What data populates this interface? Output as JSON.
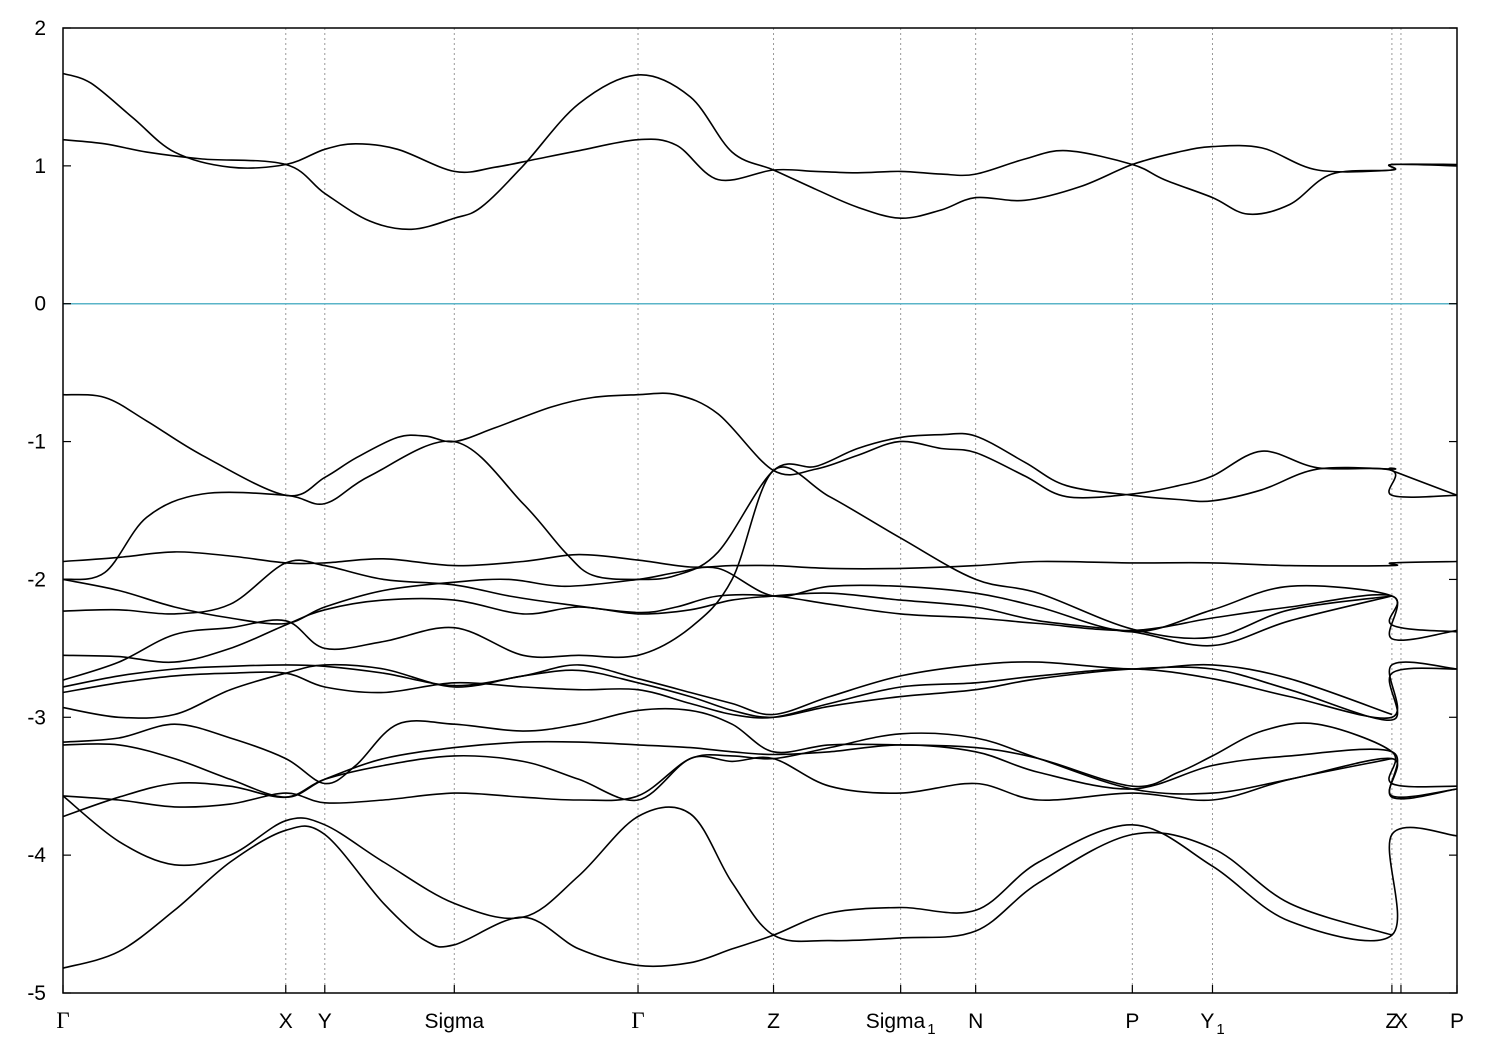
{
  "chart_data": {
    "type": "line",
    "title": "",
    "xlabel": "",
    "ylabel": "",
    "xlim": [
      0,
      1
    ],
    "ylim": [
      -5,
      2
    ],
    "y_ticks": [
      2,
      1,
      0,
      -1,
      -2,
      -3,
      -4,
      -5
    ],
    "y_tick_labels": [
      "2",
      "1",
      "0",
      "-1",
      "-2",
      "-3",
      "-4",
      "-5"
    ],
    "grid": "vertical dotted lines at high-symmetry points",
    "fermi_level": 0,
    "fermi_line_color": "#5ab4c8",
    "band_color": "#000000",
    "kpoints": [
      {
        "label": "Γ",
        "sub": "",
        "x": 0.0
      },
      {
        "label": "X",
        "sub": "",
        "x": 0.1598
      },
      {
        "label": "Y",
        "sub": "",
        "x": 0.1878
      },
      {
        "label": "Sigma",
        "sub": "",
        "x": 0.2807
      },
      {
        "label": "Γ",
        "sub": "",
        "x": 0.4125
      },
      {
        "label": "Z",
        "sub": "",
        "x": 0.5097
      },
      {
        "label": "Sigma",
        "sub": "1",
        "x": 0.6009
      },
      {
        "label": "N",
        "sub": "",
        "x": 0.6547
      },
      {
        "label": "P",
        "sub": "",
        "x": 0.7671
      },
      {
        "label": "Y",
        "sub": "1",
        "x": 0.8246
      },
      {
        "label": "Z",
        "sub": "",
        "x": 0.9533
      },
      {
        "label": "X",
        "sub": "",
        "x": 0.9598
      },
      {
        "label": "P",
        "sub": "",
        "x": 1.0
      }
    ],
    "series": [
      {
        "x": [
          0,
          0.02,
          0.05,
          0.08,
          0.12,
          0.1598,
          0.1878,
          0.21,
          0.24,
          0.2807,
          0.31,
          0.34,
          0.37,
          0.4125,
          0.44,
          0.47,
          0.5097,
          0.54,
          0.57,
          0.6009,
          0.63,
          0.6547,
          0.69,
          0.72,
          0.7671,
          0.79,
          0.8246,
          0.85,
          0.88,
          0.91,
          0.9533,
          0.9533,
          1.0
        ],
        "y": [
          1.67,
          1.6,
          1.35,
          1.1,
          0.99,
          1.01,
          1.12,
          1.16,
          1.12,
          0.96,
          0.99,
          1.05,
          1.11,
          1.19,
          1.15,
          0.9,
          0.97,
          0.96,
          0.95,
          0.96,
          0.94,
          0.94,
          1.05,
          1.11,
          1.01,
          0.9,
          0.77,
          0.65,
          0.72,
          0.94,
          0.97,
          1.01,
          1.01
        ]
      },
      {
        "x": [
          0,
          0.03,
          0.06,
          0.1,
          0.1598,
          0.1878,
          0.22,
          0.25,
          0.2807,
          0.3,
          0.33,
          0.37,
          0.4125,
          0.45,
          0.48,
          0.5097,
          0.54,
          0.57,
          0.6009,
          0.63,
          0.6547,
          0.69,
          0.73,
          0.7671,
          0.8,
          0.8246,
          0.86,
          0.9,
          0.9533,
          0.9533,
          1.0
        ],
        "y": [
          1.19,
          1.16,
          1.1,
          1.05,
          1.01,
          0.8,
          0.6,
          0.54,
          0.62,
          0.7,
          1.0,
          1.45,
          1.66,
          1.5,
          1.1,
          0.97,
          0.83,
          0.7,
          0.62,
          0.68,
          0.77,
          0.75,
          0.85,
          1.01,
          1.1,
          1.14,
          1.13,
          0.97,
          0.97,
          1.01,
          1.0
        ]
      },
      {
        "x": [
          0,
          0.03,
          0.06,
          0.1,
          0.1598,
          0.1878,
          0.21,
          0.24,
          0.26,
          0.2807,
          0.31,
          0.35,
          0.38,
          0.4125,
          0.44,
          0.47,
          0.5097,
          0.54,
          0.57,
          0.6,
          0.63,
          0.6547,
          0.69,
          0.72,
          0.7671,
          0.8,
          0.8246,
          0.86,
          0.9,
          0.9533,
          0.9533,
          1.0
        ],
        "y": [
          -0.66,
          -0.68,
          -0.85,
          -1.1,
          -1.39,
          -1.26,
          -1.12,
          -0.97,
          -0.96,
          -1.0,
          -0.9,
          -0.75,
          -0.68,
          -0.66,
          -0.66,
          -0.8,
          -1.21,
          -1.2,
          -1.1,
          -1.0,
          -1.05,
          -1.08,
          -1.25,
          -1.4,
          -1.38,
          -1.32,
          -1.25,
          -1.07,
          -1.19,
          -1.21,
          -1.39,
          -1.39
        ]
      },
      {
        "x": [
          0,
          0.03,
          0.06,
          0.1,
          0.1598,
          0.1878,
          0.22,
          0.2807,
          0.33,
          0.36,
          0.38,
          0.4125,
          0.44,
          0.47,
          0.5097,
          0.54,
          0.57,
          0.6009,
          0.63,
          0.6547,
          0.69,
          0.72,
          0.7671,
          0.8,
          0.8246,
          0.86,
          0.9,
          0.9533,
          0.9533,
          1.0
        ],
        "y": [
          -2.0,
          -1.95,
          -1.55,
          -1.38,
          -1.39,
          -1.45,
          -1.25,
          -1.0,
          -1.45,
          -1.8,
          -1.97,
          -2.0,
          -1.97,
          -1.8,
          -1.21,
          -1.18,
          -1.05,
          -0.97,
          -0.95,
          -0.96,
          -1.15,
          -1.32,
          -1.39,
          -1.42,
          -1.43,
          -1.35,
          -1.2,
          -1.2,
          -1.21,
          -1.39
        ]
      },
      {
        "x": [
          0,
          0.04,
          0.08,
          0.12,
          0.1598,
          0.1878,
          0.23,
          0.2807,
          0.33,
          0.37,
          0.4125,
          0.45,
          0.48,
          0.5097,
          0.55,
          0.6009,
          0.6547,
          0.7,
          0.7671,
          0.8246,
          0.88,
          0.9533,
          0.9533,
          1.0
        ],
        "y": [
          -1.87,
          -1.84,
          -1.8,
          -1.83,
          -1.88,
          -1.88,
          -1.85,
          -1.9,
          -1.87,
          -1.82,
          -1.86,
          -1.91,
          -1.9,
          -1.9,
          -1.92,
          -1.92,
          -1.9,
          -1.87,
          -1.88,
          -1.88,
          -1.9,
          -1.9,
          -1.88,
          -1.87
        ]
      },
      {
        "x": [
          0,
          0.04,
          0.08,
          0.12,
          0.1598,
          0.1878,
          0.23,
          0.2807,
          0.32,
          0.36,
          0.4125,
          0.44,
          0.47,
          0.5097,
          0.55,
          0.6009,
          0.6547,
          0.7,
          0.7671,
          0.8246,
          0.88,
          0.9533,
          0.9533,
          1.0
        ],
        "y": [
          -2.0,
          -2.08,
          -2.2,
          -2.28,
          -2.32,
          -2.2,
          -2.08,
          -2.02,
          -2.0,
          -2.05,
          -2.0,
          -1.95,
          -1.92,
          -2.12,
          -2.05,
          -2.05,
          -2.1,
          -2.2,
          -2.38,
          -2.22,
          -2.05,
          -2.12,
          -2.33,
          -2.38
        ]
      },
      {
        "x": [
          0,
          0.04,
          0.08,
          0.12,
          0.1598,
          0.1878,
          0.23,
          0.2807,
          0.32,
          0.36,
          0.4125,
          0.44,
          0.47,
          0.5097,
          0.55,
          0.6009,
          0.6547,
          0.7,
          0.7671,
          0.8246,
          0.88,
          0.9533,
          0.9533,
          1.0
        ],
        "y": [
          -2.23,
          -2.22,
          -2.25,
          -2.18,
          -1.88,
          -1.9,
          -2.0,
          -2.04,
          -2.12,
          -2.18,
          -2.24,
          -2.2,
          -2.12,
          -2.12,
          -2.18,
          -2.25,
          -2.28,
          -2.32,
          -2.37,
          -2.28,
          -2.2,
          -2.12,
          -2.43,
          -2.37
        ]
      },
      {
        "x": [
          0,
          0.04,
          0.08,
          0.12,
          0.1598,
          0.1878,
          0.23,
          0.2807,
          0.33,
          0.37,
          0.4125,
          0.45,
          0.48,
          0.5097,
          0.55,
          0.6009,
          0.6547,
          0.7,
          0.7671,
          0.8246,
          0.88,
          0.9533
        ],
        "y": [
          -2.55,
          -2.56,
          -2.6,
          -2.5,
          -2.33,
          -2.22,
          -2.15,
          -2.15,
          -2.25,
          -2.2,
          -2.25,
          -2.22,
          -2.15,
          -2.12,
          -2.1,
          -2.15,
          -2.2,
          -2.3,
          -2.38,
          -2.48,
          -2.3,
          -2.12
        ]
      },
      {
        "x": [
          0,
          0.04,
          0.08,
          0.12,
          0.1598,
          0.1878,
          0.23,
          0.2807,
          0.33,
          0.37,
          0.4125,
          0.45,
          0.48,
          0.5097,
          0.55,
          0.6009,
          0.6547,
          0.7,
          0.7671,
          0.8246,
          0.88,
          0.9533
        ],
        "y": [
          -2.73,
          -2.6,
          -2.4,
          -2.35,
          -2.3,
          -2.5,
          -2.45,
          -2.35,
          -2.55,
          -2.55,
          -2.55,
          -2.35,
          -2.0,
          -1.21,
          -1.4,
          -1.7,
          -2.0,
          -2.1,
          -2.36,
          -2.42,
          -2.22,
          -2.12
        ]
      },
      {
        "x": [
          0,
          0.04,
          0.08,
          0.12,
          0.1598,
          0.1878,
          0.23,
          0.2807,
          0.33,
          0.37,
          0.4125,
          0.45,
          0.48,
          0.5097,
          0.55,
          0.6009,
          0.6547,
          0.7,
          0.7671,
          0.8246,
          0.88,
          0.9533
        ],
        "y": [
          -2.78,
          -2.7,
          -2.65,
          -2.63,
          -2.62,
          -2.63,
          -2.68,
          -2.77,
          -2.7,
          -2.62,
          -2.72,
          -2.82,
          -2.9,
          -2.98,
          -2.85,
          -2.7,
          -2.62,
          -2.6,
          -2.65,
          -2.62,
          -2.72,
          -2.98
        ]
      },
      {
        "x": [
          0,
          0.04,
          0.08,
          0.12,
          0.1598,
          0.1878,
          0.23,
          0.2807,
          0.33,
          0.37,
          0.4125,
          0.45,
          0.48,
          0.5097,
          0.55,
          0.6009,
          0.6547,
          0.7,
          0.7671,
          0.8246,
          0.88,
          0.9533,
          0.9533,
          1.0
        ],
        "y": [
          -2.82,
          -2.75,
          -2.7,
          -2.68,
          -2.68,
          -2.78,
          -2.82,
          -2.75,
          -2.78,
          -2.8,
          -2.8,
          -2.9,
          -2.98,
          -3.0,
          -2.9,
          -2.78,
          -2.75,
          -2.7,
          -2.65,
          -2.72,
          -2.85,
          -3.0,
          -2.62,
          -2.65
        ]
      },
      {
        "x": [
          0,
          0.04,
          0.08,
          0.12,
          0.1598,
          0.1878,
          0.23,
          0.2807,
          0.33,
          0.37,
          0.4125,
          0.45,
          0.48,
          0.5097,
          0.55,
          0.6009,
          0.6547,
          0.7,
          0.7671,
          0.8246,
          0.88,
          0.9533,
          0.9533,
          1.0
        ],
        "y": [
          -2.93,
          -3.0,
          -2.98,
          -2.8,
          -2.68,
          -2.62,
          -2.65,
          -2.78,
          -2.7,
          -2.66,
          -2.75,
          -2.85,
          -2.95,
          -3.0,
          -2.92,
          -2.85,
          -2.8,
          -2.72,
          -2.65,
          -2.65,
          -2.8,
          -3.02,
          -2.68,
          -2.65
        ]
      },
      {
        "x": [
          0,
          0.04,
          0.08,
          0.12,
          0.1598,
          0.1878,
          0.21,
          0.24,
          0.2807,
          0.33,
          0.37,
          0.4125,
          0.45,
          0.48,
          0.5097,
          0.55,
          0.6009,
          0.6547,
          0.7,
          0.7671,
          0.8,
          0.8246,
          0.86,
          0.9,
          0.9533,
          0.9533,
          1.0
        ],
        "y": [
          -3.18,
          -3.15,
          -3.05,
          -3.15,
          -3.3,
          -3.48,
          -3.35,
          -3.05,
          -3.05,
          -3.1,
          -3.05,
          -2.95,
          -2.95,
          -3.05,
          -3.25,
          -3.2,
          -3.2,
          -3.22,
          -3.3,
          -3.5,
          -3.4,
          -3.28,
          -3.1,
          -3.05,
          -3.25,
          -3.48,
          -3.5
        ]
      },
      {
        "x": [
          0,
          0.04,
          0.08,
          0.12,
          0.1598,
          0.1878,
          0.23,
          0.2807,
          0.33,
          0.37,
          0.4125,
          0.45,
          0.48,
          0.5097,
          0.55,
          0.6009,
          0.6547,
          0.7,
          0.7671,
          0.8246,
          0.88,
          0.9533,
          0.9533,
          1.0
        ],
        "y": [
          -3.2,
          -3.2,
          -3.3,
          -3.45,
          -3.58,
          -3.45,
          -3.3,
          -3.22,
          -3.18,
          -3.18,
          -3.2,
          -3.22,
          -3.25,
          -3.27,
          -3.25,
          -3.2,
          -3.25,
          -3.4,
          -3.52,
          -3.35,
          -3.28,
          -3.25,
          -3.58,
          -3.52
        ]
      },
      {
        "x": [
          0,
          0.04,
          0.08,
          0.12,
          0.1598,
          0.1878,
          0.23,
          0.2807,
          0.33,
          0.37,
          0.4125,
          0.45,
          0.48,
          0.5097,
          0.55,
          0.6009,
          0.6547,
          0.7,
          0.7671,
          0.8246,
          0.88,
          0.9533,
          0.9533,
          1.0
        ],
        "y": [
          -3.57,
          -3.6,
          -3.65,
          -3.63,
          -3.55,
          -3.62,
          -3.6,
          -3.55,
          -3.58,
          -3.6,
          -3.57,
          -3.3,
          -3.28,
          -3.3,
          -3.22,
          -3.12,
          -3.15,
          -3.3,
          -3.52,
          -3.55,
          -3.45,
          -3.3,
          -3.57,
          -3.52
        ]
      },
      {
        "x": [
          0,
          0.04,
          0.08,
          0.12,
          0.1598,
          0.1878,
          0.23,
          0.2807,
          0.33,
          0.37,
          0.4125,
          0.45,
          0.48,
          0.5097,
          0.55,
          0.6009,
          0.6547,
          0.7,
          0.7671,
          0.8246,
          0.88,
          0.9533
        ],
        "y": [
          -3.72,
          -3.58,
          -3.48,
          -3.5,
          -3.58,
          -3.45,
          -3.35,
          -3.28,
          -3.32,
          -3.45,
          -3.6,
          -3.3,
          -3.32,
          -3.3,
          -3.5,
          -3.55,
          -3.48,
          -3.6,
          -3.55,
          -3.6,
          -3.45,
          -3.3
        ]
      },
      {
        "x": [
          0,
          0.04,
          0.08,
          0.12,
          0.1598,
          0.1878,
          0.23,
          0.2807,
          0.33,
          0.37,
          0.4125,
          0.45,
          0.48,
          0.5097,
          0.55,
          0.6009,
          0.6547,
          0.7,
          0.7671,
          0.8246,
          0.88,
          0.9533
        ],
        "y": [
          -3.57,
          -3.9,
          -4.07,
          -4.0,
          -3.75,
          -3.78,
          -4.05,
          -4.35,
          -4.45,
          -4.15,
          -3.72,
          -3.7,
          -4.2,
          -4.58,
          -4.62,
          -4.6,
          -4.55,
          -4.2,
          -3.85,
          -3.95,
          -4.35,
          -4.58
        ]
      },
      {
        "x": [
          0,
          0.04,
          0.08,
          0.12,
          0.1598,
          0.1878,
          0.23,
          0.26,
          0.2807,
          0.33,
          0.37,
          0.4125,
          0.45,
          0.48,
          0.5097,
          0.55,
          0.6009,
          0.6547,
          0.7,
          0.7671,
          0.8246,
          0.88,
          0.9533,
          0.9533,
          1.0
        ],
        "y": [
          -4.82,
          -4.7,
          -4.4,
          -4.05,
          -3.82,
          -3.85,
          -4.35,
          -4.62,
          -4.65,
          -4.45,
          -4.68,
          -4.8,
          -4.78,
          -4.68,
          -4.58,
          -4.42,
          -4.38,
          -4.4,
          -4.05,
          -3.78,
          -4.08,
          -4.48,
          -4.58,
          -3.85,
          -3.86
        ]
      }
    ]
  }
}
